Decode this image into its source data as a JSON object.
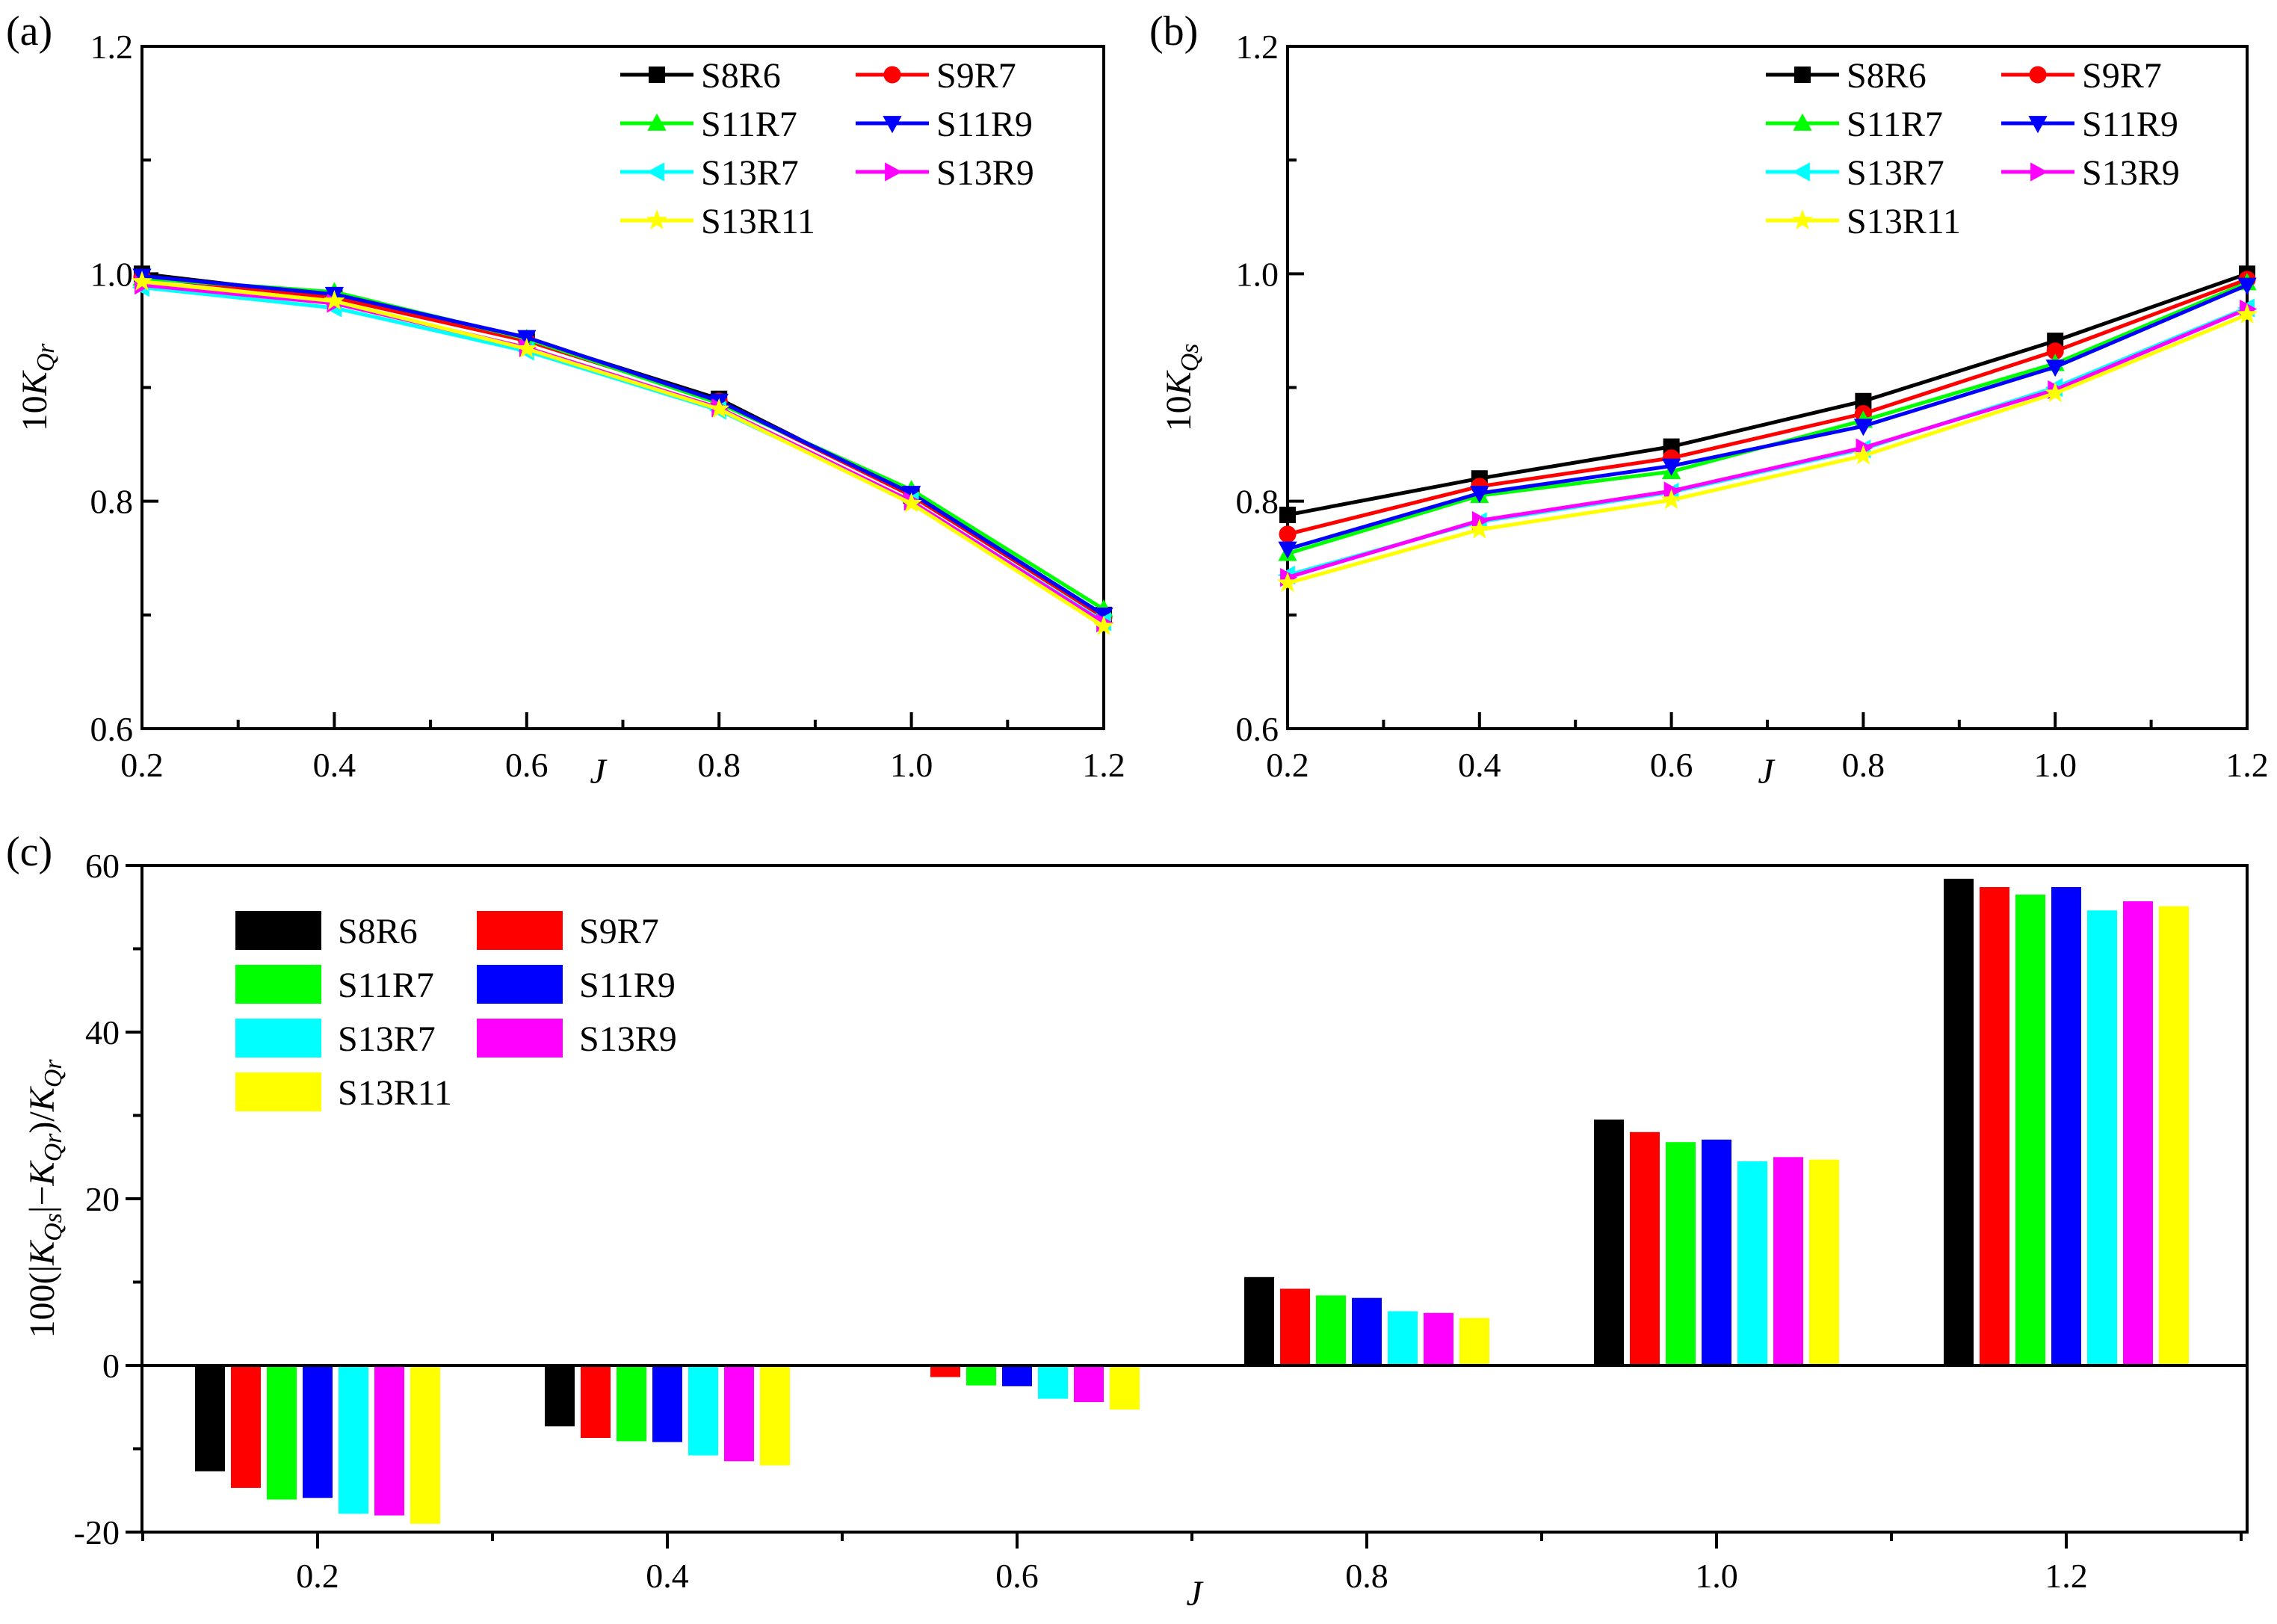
{
  "chart_data": [
    {
      "id": "a",
      "panel_label": "(a)",
      "type": "line",
      "xlabel": "J",
      "ylabel": {
        "prefix": "10",
        "main": "K",
        "sub": "Qr"
      },
      "xlim": [
        0.2,
        1.2
      ],
      "ylim": [
        0.6,
        1.2
      ],
      "xticks": [
        "0.2",
        "0.4",
        "0.6",
        "0.8",
        "1.0",
        "1.2"
      ],
      "yticks": [
        "0.6",
        "0.8",
        "1.0",
        "1.2"
      ],
      "x": [
        0.2,
        0.4,
        0.6,
        0.8,
        1.0,
        1.2
      ],
      "legend_position": "top-right",
      "series": [
        {
          "name": "S8R6",
          "color": "#000000",
          "marker": "square",
          "values": [
            1.0,
            0.98,
            0.943,
            0.89,
            0.805,
            0.7
          ]
        },
        {
          "name": "S9R7",
          "color": "#ff0000",
          "marker": "circle",
          "values": [
            0.997,
            0.979,
            0.941,
            0.888,
            0.805,
            0.698
          ]
        },
        {
          "name": "S11R7",
          "color": "#00ff00",
          "marker": "triangle-up",
          "values": [
            0.996,
            0.984,
            0.943,
            0.886,
            0.81,
            0.705
          ]
        },
        {
          "name": "S11R9",
          "color": "#0000ff",
          "marker": "triangle-down",
          "values": [
            0.998,
            0.982,
            0.944,
            0.888,
            0.807,
            0.7
          ]
        },
        {
          "name": "S13R7",
          "color": "#00ffff",
          "marker": "triangle-left",
          "values": [
            0.988,
            0.97,
            0.932,
            0.88,
            0.8,
            0.694
          ]
        },
        {
          "name": "S13R9",
          "color": "#ff00ff",
          "marker": "triangle-right",
          "values": [
            0.99,
            0.974,
            0.935,
            0.882,
            0.8,
            0.693
          ]
        },
        {
          "name": "S13R11",
          "color": "#ffff00",
          "marker": "star",
          "values": [
            0.993,
            0.976,
            0.934,
            0.881,
            0.798,
            0.69
          ]
        }
      ]
    },
    {
      "id": "b",
      "panel_label": "(b)",
      "type": "line",
      "xlabel": "J",
      "ylabel": {
        "prefix": "10",
        "main": "K",
        "sub": "Qs"
      },
      "xlim": [
        0.2,
        1.2
      ],
      "ylim": [
        0.6,
        1.2
      ],
      "xticks": [
        "0.2",
        "0.4",
        "0.6",
        "0.8",
        "1.0",
        "1.2"
      ],
      "yticks": [
        "0.6",
        "0.8",
        "1.0",
        "1.2"
      ],
      "x": [
        0.2,
        0.4,
        0.6,
        0.8,
        1.0,
        1.2
      ],
      "legend_position": "top-right",
      "series": [
        {
          "name": "S8R6",
          "color": "#000000",
          "marker": "square",
          "values": [
            0.788,
            0.82,
            0.848,
            0.888,
            0.941,
            1.0
          ]
        },
        {
          "name": "S9R7",
          "color": "#ff0000",
          "marker": "circle",
          "values": [
            0.771,
            0.813,
            0.838,
            0.877,
            0.932,
            0.995
          ]
        },
        {
          "name": "S11R7",
          "color": "#00ff00",
          "marker": "triangle-up",
          "values": [
            0.754,
            0.805,
            0.826,
            0.871,
            0.921,
            0.992
          ]
        },
        {
          "name": "S11R9",
          "color": "#0000ff",
          "marker": "triangle-down",
          "values": [
            0.758,
            0.807,
            0.831,
            0.866,
            0.918,
            0.99
          ]
        },
        {
          "name": "S13R7",
          "color": "#00ffff",
          "marker": "triangle-left",
          "values": [
            0.735,
            0.782,
            0.808,
            0.846,
            0.9,
            0.97
          ]
        },
        {
          "name": "S13R9",
          "color": "#ff00ff",
          "marker": "triangle-right",
          "values": [
            0.733,
            0.783,
            0.809,
            0.847,
            0.898,
            0.969
          ]
        },
        {
          "name": "S13R11",
          "color": "#ffff00",
          "marker": "star",
          "values": [
            0.728,
            0.775,
            0.801,
            0.84,
            0.895,
            0.964
          ]
        }
      ]
    },
    {
      "id": "c",
      "panel_label": "(c)",
      "type": "bar",
      "xlabel": "J",
      "ylabel": {
        "prefix": "100(|",
        "main": "K",
        "sub": "Qs",
        "mid": "|−",
        "main2": "K",
        "sub2": "Qr",
        "suffix": ")/",
        "main3": "K",
        "sub3": "Qr"
      },
      "ylim": [
        -20,
        60
      ],
      "yticks": [
        "-20",
        "0",
        "20",
        "40",
        "60"
      ],
      "categories": [
        "0.2",
        "0.4",
        "0.6",
        "0.8",
        "1.0",
        "1.2"
      ],
      "legend_position": "top-left",
      "series": [
        {
          "name": "S8R6",
          "color": "#000000",
          "values": [
            -12.7,
            -7.3,
            -0.1,
            10.6,
            29.5,
            58.4
          ]
        },
        {
          "name": "S9R7",
          "color": "#ff0000",
          "values": [
            -14.7,
            -8.7,
            -1.4,
            9.2,
            28.0,
            57.4
          ]
        },
        {
          "name": "S11R7",
          "color": "#00ff00",
          "values": [
            -16.1,
            -9.1,
            -2.4,
            8.4,
            26.8,
            56.5
          ]
        },
        {
          "name": "S11R9",
          "color": "#0000ff",
          "values": [
            -15.9,
            -9.2,
            -2.5,
            8.1,
            27.1,
            57.4
          ]
        },
        {
          "name": "S13R7",
          "color": "#00ffff",
          "values": [
            -17.8,
            -10.8,
            -4.0,
            6.5,
            24.5,
            54.6
          ]
        },
        {
          "name": "S13R9",
          "color": "#ff00ff",
          "values": [
            -18.0,
            -11.5,
            -4.4,
            6.3,
            25.0,
            55.7
          ]
        },
        {
          "name": "S13R11",
          "color": "#ffff00",
          "values": [
            -19.0,
            -12.0,
            -5.3,
            5.7,
            24.7,
            55.1
          ]
        }
      ]
    }
  ]
}
